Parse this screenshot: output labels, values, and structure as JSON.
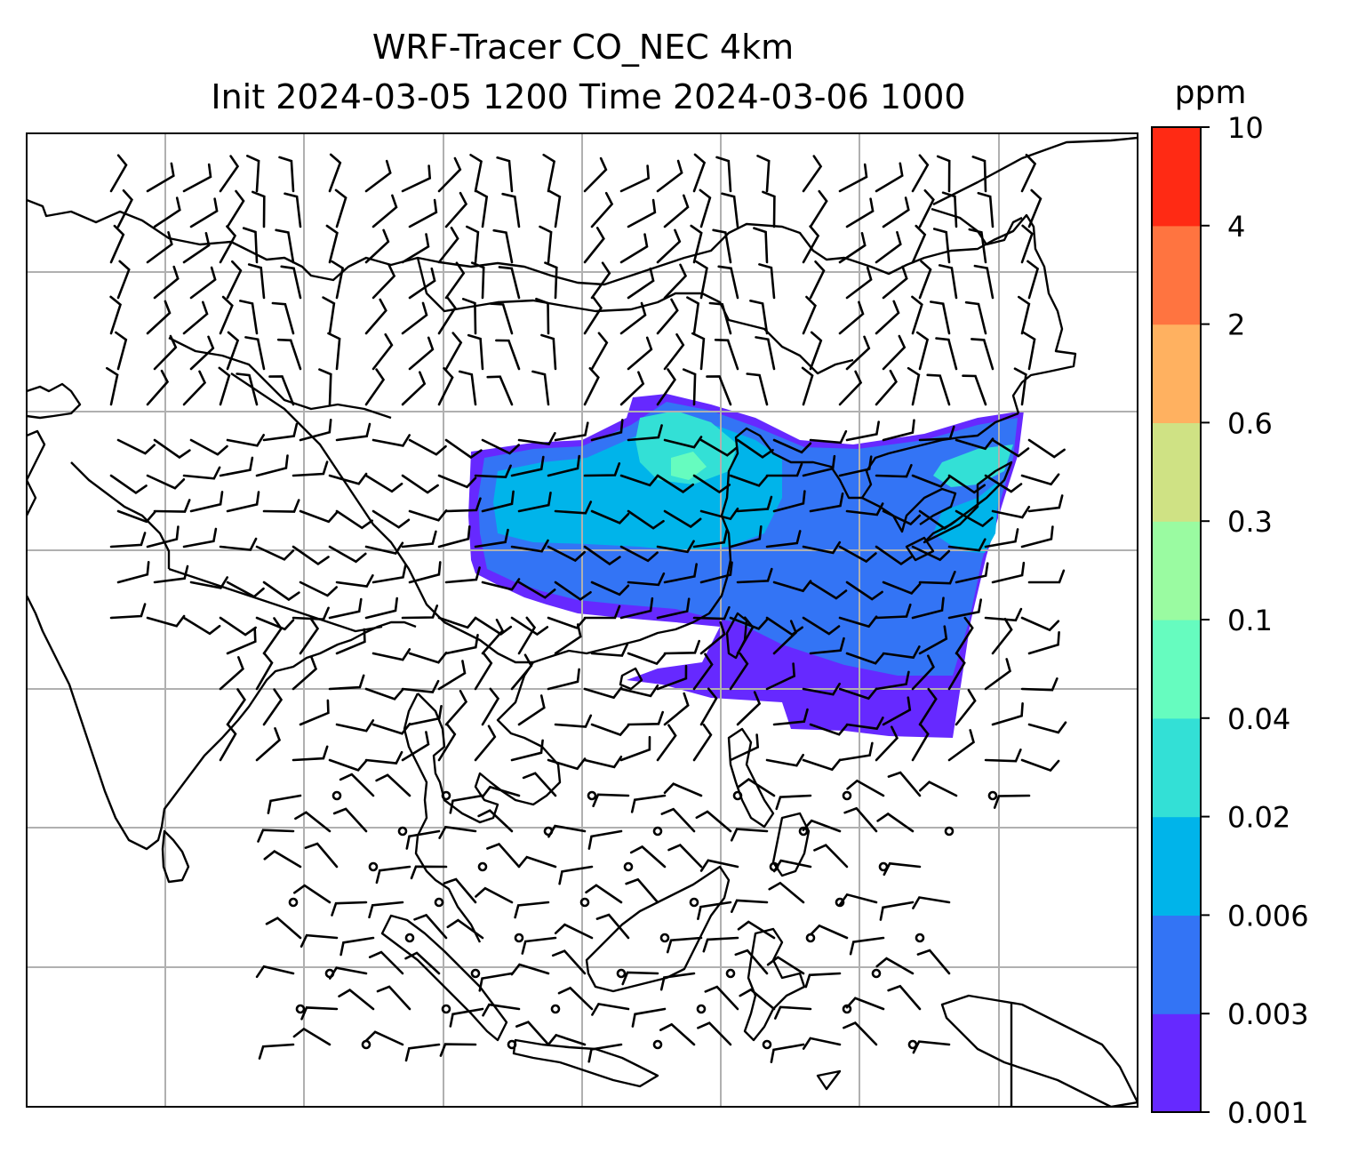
{
  "title": {
    "line1": "WRF-Tracer CO_NEC 4km",
    "line2": "Init 2024-03-05 1200 Time 2024-03-06 1000"
  },
  "colorbar": {
    "units": "ppm",
    "tick_labels": [
      "0.001",
      "0.003",
      "0.006",
      "0.02",
      "0.04",
      "0.1",
      "0.3",
      "0.6",
      "2",
      "4",
      "10"
    ],
    "colors": [
      "#6629ff",
      "#3374f5",
      "#00b4ea",
      "#33e0d6",
      "#66fcbf",
      "#9afba1",
      "#cfe284",
      "#ffb160",
      "#ff7440",
      "#ff2a14"
    ]
  },
  "map": {
    "gridlines": true,
    "plume_colors": {
      "outer": "#6629ff",
      "mid": "#3374f5",
      "inner": "#00b4ea",
      "core": "#33e0d6",
      "hotspot": "#66fcbf"
    },
    "coast_color": "#000000",
    "grid_color": "#b0b0b0",
    "barb_color": "#000000"
  }
}
